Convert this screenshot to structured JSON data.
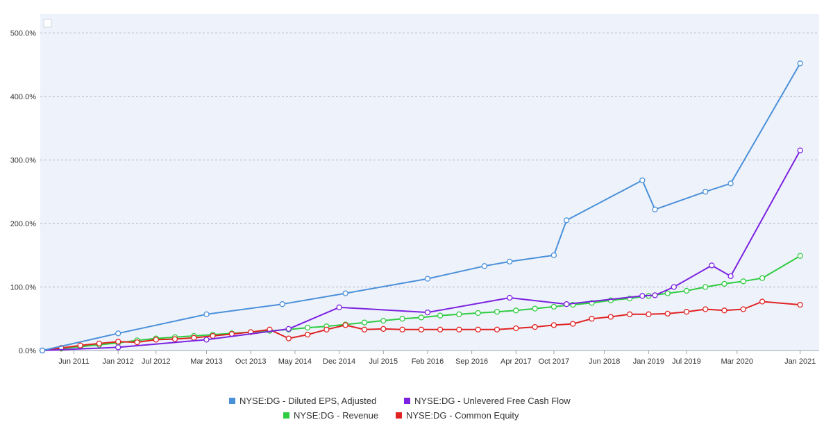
{
  "chart_data": {
    "type": "line",
    "title": "",
    "xlabel": "",
    "ylabel": "",
    "ylim": [
      0,
      530
    ],
    "y_ticks": [
      0,
      100,
      200,
      300,
      400,
      500
    ],
    "y_tick_labels": [
      "0.0%",
      "100.0%",
      "200.0%",
      "300.0%",
      "400.0%",
      "500.0%"
    ],
    "x_tick_labels": [
      "Jun 2011",
      "Jan 2012",
      "Jul 2012",
      "Mar 2013",
      "Oct 2013",
      "May 2014",
      "Dec 2014",
      "Jul 2015",
      "Feb 2016",
      "Sep 2016",
      "Apr 2017",
      "Oct 2017",
      "Jun 2018",
      "Jan 2019",
      "Jul 2019",
      "Mar 2020",
      "Jan 2021"
    ],
    "x_tick_dates": [
      "2011-06",
      "2012-01",
      "2012-07",
      "2013-03",
      "2013-10",
      "2014-05",
      "2014-12",
      "2015-07",
      "2016-02",
      "2016-09",
      "2017-04",
      "2017-10",
      "2018-06",
      "2019-01",
      "2019-07",
      "2020-03",
      "2021-01"
    ],
    "grid": true,
    "legend_position": "bottom",
    "series": [
      {
        "name": "NYSE:DG - Diluted EPS, Adjusted",
        "color": "#4a90d9",
        "x": [
          "2011-01",
          "2012-01",
          "2013-03",
          "2014-03",
          "2015-01",
          "2016-02",
          "2016-11",
          "2017-03",
          "2017-10",
          "2017-12",
          "2018-12",
          "2019-02",
          "2019-10",
          "2020-02",
          "2021-01"
        ],
        "values": [
          0,
          27,
          57,
          73,
          90,
          113,
          133,
          140,
          150,
          205,
          268,
          222,
          250,
          263,
          452
        ]
      },
      {
        "name": "NYSE:DG - Unlevered Free Cash Flow",
        "color": "#7b22e0",
        "x": [
          "2011-01",
          "2012-01",
          "2013-03",
          "2014-04",
          "2014-12",
          "2016-02",
          "2017-03",
          "2017-12",
          "2018-12",
          "2019-02",
          "2019-05",
          "2019-11",
          "2020-02",
          "2021-01"
        ],
        "values": [
          0,
          5,
          17,
          34,
          68,
          60,
          83,
          73,
          86,
          87,
          100,
          134,
          117,
          315
        ]
      },
      {
        "name": "NYSE:DG - Revenue",
        "color": "#2ecc40",
        "x": [
          "2011-01",
          "2011-04",
          "2011-07",
          "2011-10",
          "2012-01",
          "2012-04",
          "2012-07",
          "2012-10",
          "2013-01",
          "2013-04",
          "2013-07",
          "2013-10",
          "2014-01",
          "2014-04",
          "2014-07",
          "2014-10",
          "2015-01",
          "2015-04",
          "2015-07",
          "2015-10",
          "2016-01",
          "2016-04",
          "2016-07",
          "2016-10",
          "2017-01",
          "2017-04",
          "2017-07",
          "2017-10",
          "2018-01",
          "2018-04",
          "2018-07",
          "2018-10",
          "2019-01",
          "2019-04",
          "2019-07",
          "2019-10",
          "2020-01",
          "2020-04",
          "2020-07",
          "2021-01"
        ],
        "values": [
          0,
          3,
          6,
          9,
          12,
          16,
          19,
          21,
          23,
          25,
          27,
          29,
          31,
          33,
          36,
          38,
          41,
          44,
          47,
          50,
          52,
          55,
          57,
          59,
          61,
          63,
          66,
          69,
          72,
          75,
          79,
          82,
          86,
          90,
          94,
          100,
          105,
          109,
          114,
          149
        ]
      },
      {
        "name": "NYSE:DG - Common Equity",
        "color": "#e02222",
        "x": [
          "2011-01",
          "2011-04",
          "2011-07",
          "2011-10",
          "2012-01",
          "2012-04",
          "2012-07",
          "2012-10",
          "2013-01",
          "2013-04",
          "2013-07",
          "2013-10",
          "2014-01",
          "2014-04",
          "2014-07",
          "2014-10",
          "2015-01",
          "2015-04",
          "2015-07",
          "2015-10",
          "2016-01",
          "2016-04",
          "2016-07",
          "2016-10",
          "2017-01",
          "2017-04",
          "2017-07",
          "2017-10",
          "2018-01",
          "2018-04",
          "2018-07",
          "2018-10",
          "2019-01",
          "2019-04",
          "2019-07",
          "2019-10",
          "2020-01",
          "2020-04",
          "2020-07",
          "2021-01"
        ],
        "values": [
          0,
          4,
          8,
          11,
          14,
          13,
          17,
          18,
          20,
          23,
          26,
          29,
          33,
          19,
          25,
          33,
          40,
          33,
          34,
          33,
          33,
          33,
          33,
          33,
          33,
          35,
          37,
          40,
          42,
          50,
          53,
          57,
          57,
          58,
          61,
          65,
          63,
          65,
          77,
          72
        ]
      }
    ]
  }
}
